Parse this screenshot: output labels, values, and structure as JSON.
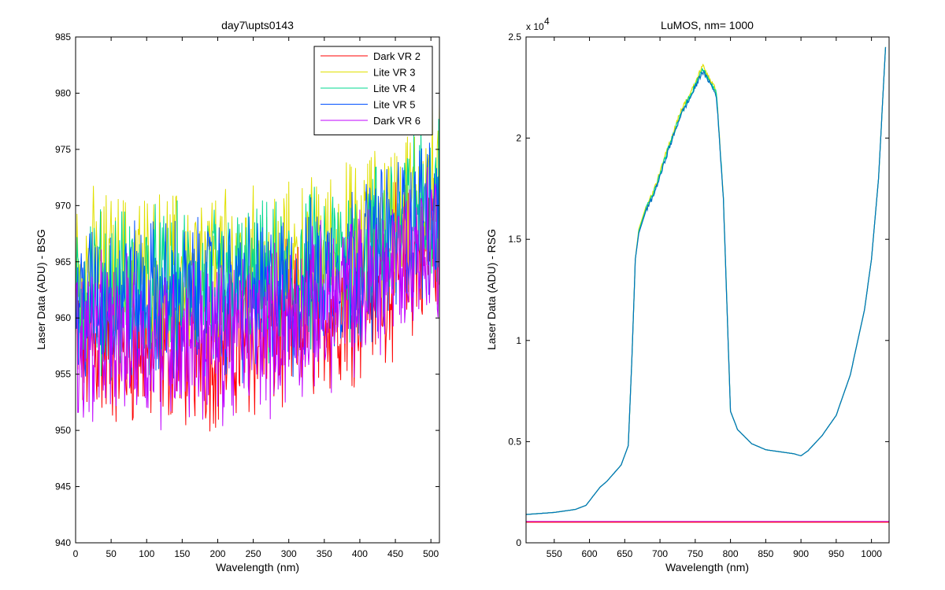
{
  "chart_data": [
    {
      "type": "line",
      "title": "day7\\upts0143",
      "xlabel": "Wavelength (nm)",
      "ylabel": "Laser Data (ADU) - BSG",
      "xlim": [
        0,
        512
      ],
      "ylim": [
        940,
        985
      ],
      "xticks": [
        0,
        50,
        100,
        150,
        200,
        250,
        300,
        350,
        400,
        450,
        500
      ],
      "yticks": [
        940,
        945,
        950,
        955,
        960,
        965,
        970,
        975,
        980,
        985
      ],
      "legend_position": "top-right",
      "grid": false,
      "noise_amplitude": 6,
      "series": [
        {
          "name": "Dark VR 2",
          "color": "#ff0000",
          "x": [
            0,
            100,
            200,
            300,
            400,
            512
          ],
          "y": [
            957.5,
            957.5,
            957.5,
            959,
            962,
            967
          ]
        },
        {
          "name": "Lite VR 3",
          "color": "#e0e000",
          "x": [
            0,
            100,
            200,
            300,
            400,
            512
          ],
          "y": [
            964,
            964,
            964,
            964.5,
            967,
            972
          ]
        },
        {
          "name": "Lite VR 4",
          "color": "#00d890",
          "x": [
            0,
            100,
            200,
            300,
            400,
            512
          ],
          "y": [
            962.5,
            962.5,
            962.5,
            963,
            966,
            971
          ]
        },
        {
          "name": "Lite VR 5",
          "color": "#0050ff",
          "x": [
            0,
            100,
            200,
            300,
            400,
            512
          ],
          "y": [
            961.5,
            961.5,
            961.5,
            962,
            965,
            970
          ]
        },
        {
          "name": "Dark VR 6",
          "color": "#c000ff",
          "x": [
            0,
            100,
            200,
            300,
            400,
            512
          ],
          "y": [
            958,
            958,
            958,
            959.5,
            962.5,
            967.5
          ]
        }
      ]
    },
    {
      "type": "line",
      "title": "LuMOS, nm= 1000",
      "xlabel": "Wavelength (nm)",
      "ylabel": "Laser Data (ADU) - RSG",
      "xlim": [
        510,
        1025
      ],
      "ylim": [
        0,
        25000
      ],
      "xticks": [
        550,
        600,
        650,
        700,
        750,
        800,
        850,
        900,
        950,
        1000
      ],
      "yticks": [
        0,
        5000,
        10000,
        15000,
        20000,
        25000
      ],
      "ytick_labels": [
        "0",
        "0.5",
        "1",
        "1.5",
        "2",
        "2.5"
      ],
      "exponent_label": "x 10",
      "exponent_power": "4",
      "grid": false,
      "series": [
        {
          "color": "#e0e000",
          "x": [
            510,
            550,
            580,
            595,
            605,
            615,
            625,
            635,
            645,
            655,
            660,
            665,
            670,
            680,
            690,
            700,
            710,
            720,
            730,
            740,
            750,
            760,
            770,
            780,
            790,
            800,
            810,
            830,
            850,
            870,
            890,
            900,
            910,
            930,
            950,
            970,
            990,
            1000,
            1010,
            1020
          ],
          "y": [
            1400,
            1500,
            1650,
            1850,
            2300,
            2750,
            3050,
            3450,
            3850,
            4800,
            9000,
            14000,
            15500,
            16600,
            17300,
            18300,
            19400,
            20400,
            21400,
            22000,
            22700,
            23600,
            23000,
            22300,
            17000,
            6500,
            5600,
            4900,
            4600,
            4500,
            4400,
            4300,
            4550,
            5300,
            6300,
            8300,
            11500,
            14000,
            18000,
            24500
          ]
        },
        {
          "color": "#00d890",
          "x": [
            510,
            550,
            580,
            595,
            605,
            615,
            625,
            635,
            645,
            655,
            660,
            665,
            670,
            680,
            690,
            700,
            710,
            720,
            730,
            740,
            750,
            760,
            770,
            780,
            790,
            800,
            810,
            830,
            850,
            870,
            890,
            900,
            910,
            930,
            950,
            970,
            990,
            1000,
            1010,
            1020
          ],
          "y": [
            1400,
            1500,
            1650,
            1850,
            2300,
            2750,
            3050,
            3450,
            3850,
            4800,
            9000,
            14000,
            15400,
            16500,
            17200,
            18200,
            19300,
            20300,
            21300,
            21900,
            22600,
            23400,
            22900,
            22200,
            17000,
            6500,
            5600,
            4900,
            4600,
            4500,
            4400,
            4300,
            4550,
            5300,
            6300,
            8300,
            11500,
            14000,
            18000,
            24500
          ]
        },
        {
          "color": "#0070c0",
          "x": [
            510,
            550,
            580,
            595,
            605,
            615,
            625,
            635,
            645,
            655,
            660,
            665,
            670,
            680,
            690,
            700,
            710,
            720,
            730,
            740,
            750,
            760,
            770,
            780,
            790,
            800,
            810,
            830,
            850,
            870,
            890,
            900,
            910,
            930,
            950,
            970,
            990,
            1000,
            1010,
            1020
          ],
          "y": [
            1400,
            1500,
            1650,
            1850,
            2300,
            2750,
            3050,
            3450,
            3850,
            4800,
            9000,
            14000,
            15300,
            16400,
            17100,
            18100,
            19200,
            20200,
            21200,
            21800,
            22500,
            23300,
            22800,
            22100,
            17000,
            6500,
            5600,
            4900,
            4600,
            4500,
            4400,
            4300,
            4550,
            5300,
            6300,
            8300,
            11500,
            14000,
            18000,
            24500
          ]
        },
        {
          "color": "#c000ff",
          "x": [
            510,
            1025
          ],
          "y": [
            1050,
            1050
          ]
        },
        {
          "color": "#ff0000",
          "x": [
            510,
            1025
          ],
          "y": [
            1020,
            1020
          ]
        }
      ]
    }
  ]
}
